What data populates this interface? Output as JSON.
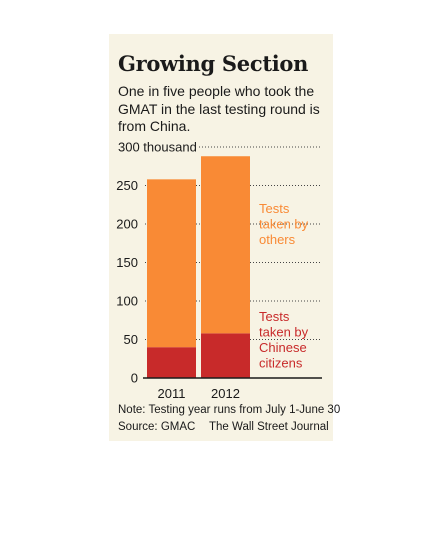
{
  "chart_data": {
    "type": "bar",
    "stacked": true,
    "title": "Growing Section",
    "subtitle": "One in five people who took the GMAT in the last testing round is from China.",
    "categories": [
      "2011",
      "2012"
    ],
    "series": [
      {
        "name": "Tests taken by Chinese citizens",
        "values": [
          40,
          58
        ],
        "color": "#c82a2a"
      },
      {
        "name": "Tests taken by others",
        "values": [
          218,
          230
        ],
        "color": "#f98a35"
      }
    ],
    "ylim": [
      0,
      300
    ],
    "yticks": [
      0,
      50,
      100,
      150,
      200,
      250,
      300
    ],
    "ytick_labels": [
      "0",
      "50",
      "100",
      "150",
      "200",
      "250",
      "300 thousand"
    ],
    "grid": "dotted horizontal",
    "legend": "right, inline labels",
    "note": "Note: Testing year runs from July 1-June 30",
    "source": "Source: GMAC",
    "publisher": "The Wall Street Journal"
  },
  "legend": {
    "others_lines": [
      "Tests",
      "taken by",
      "others"
    ],
    "chinese_lines": [
      "Tests",
      "taken by",
      "Chinese",
      "citizens"
    ]
  }
}
